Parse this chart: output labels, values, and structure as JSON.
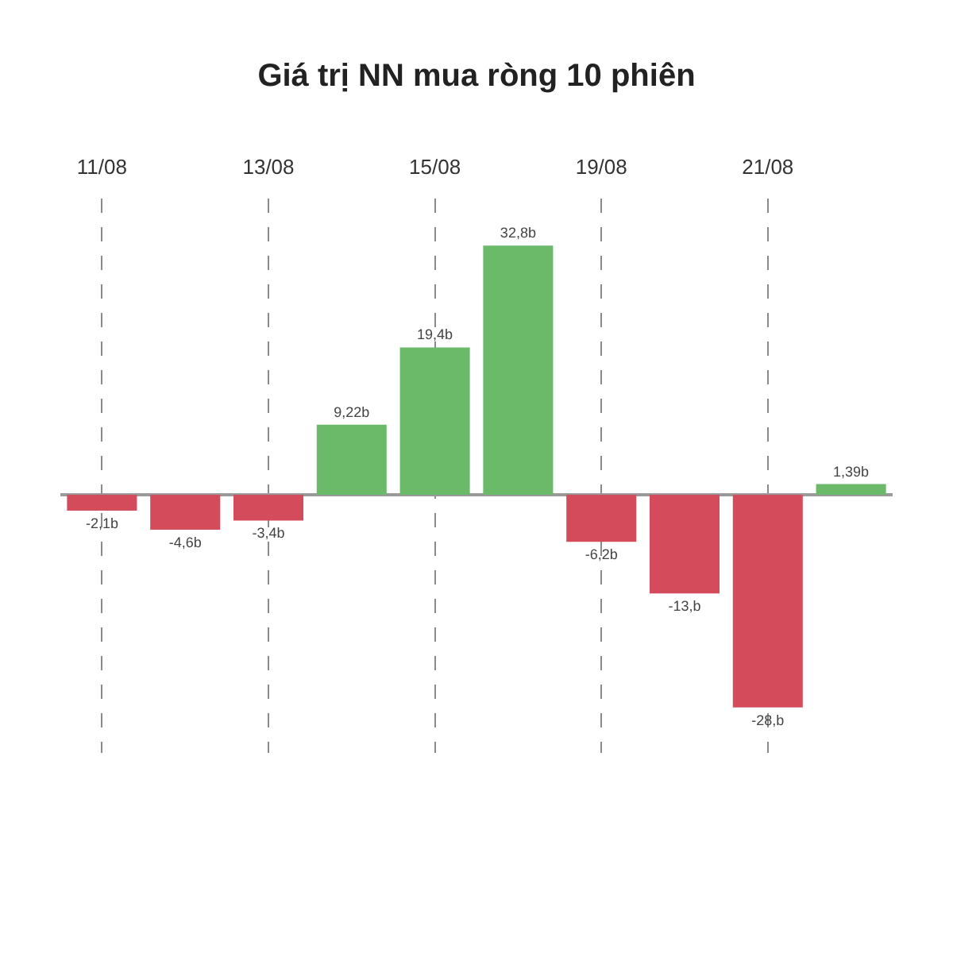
{
  "chart_data": {
    "type": "bar",
    "title": "Giá trị NN mua ròng 10 phiên",
    "categories": [
      "11/08",
      null,
      "13/08",
      null,
      "15/08",
      null,
      "19/08",
      null,
      "21/08",
      null
    ],
    "values": [
      -2.1,
      -4.6,
      -3.4,
      9.22,
      19.4,
      32.8,
      -6.2,
      -13,
      -28,
      1.39
    ],
    "colors": [
      "#d44b5b",
      "#d44b5b",
      "#d44b5b",
      "#6aba6a",
      "#6aba6a",
      "#6aba6a",
      "#d44b5b",
      "#d44b5b",
      "#d44b5b",
      "#6aba6a"
    ],
    "value_labels": [
      "-2,1b",
      "-4,6b",
      "-3,4b",
      "9,22b",
      "19,4b",
      "32,8b",
      "-6,2b",
      "-13,b",
      "-28,b",
      "1,39b"
    ],
    "ylim": [
      -34,
      39
    ],
    "grid": "x",
    "tick_labels": "x"
  }
}
